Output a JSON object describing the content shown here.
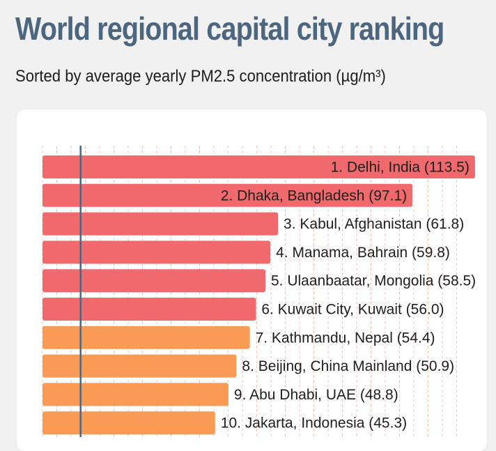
{
  "title": "World regional capital city ranking",
  "subtitle": "Sorted by average yearly PM2.5 concentration (µg/m³)",
  "colors": {
    "title": "#4d6680",
    "tier_high": "#f0696c",
    "tier_mid": "#f99b55",
    "reference_line": "#4d6680",
    "grid": "#f3c9c0"
  },
  "chart_data": {
    "type": "bar",
    "orientation": "horizontal",
    "title": "World regional capital city ranking",
    "subtitle": "Sorted by average yearly PM2.5 concentration (µg/m³)",
    "xlim": [
      0,
      120
    ],
    "reference_line": 10,
    "grid": true,
    "categories": [
      "Delhi, India",
      "Dhaka, Bangladesh",
      "Kabul, Afghanistan",
      "Manama, Bahrain",
      "Ulaanbaatar, Mongolia",
      "Kuwait City, Kuwait",
      "Kathmandu, Nepal",
      "Beijing, China Mainland",
      "Abu Dhabi, UAE",
      "Jakarta, Indonesia"
    ],
    "values": [
      113.5,
      97.1,
      61.8,
      59.8,
      58.5,
      56.0,
      54.4,
      50.9,
      48.8,
      45.3
    ],
    "labels": [
      "1. Delhi, India (113.5)",
      "2. Dhaka, Bangladesh (97.1)",
      "3. Kabul, Afghanistan (61.8)",
      "4. Manama, Bahrain (59.8)",
      "5. Ulaanbaatar, Mongolia (58.5)",
      "6. Kuwait City, Kuwait (56.0)",
      "7. Kathmandu, Nepal (54.4)",
      "8. Beijing, China Mainland (50.9)",
      "9. Abu Dhabi, UAE (48.8)",
      "10. Jakarta, Indonesia (45.3)"
    ],
    "tiers": [
      "high",
      "high",
      "high",
      "high",
      "high",
      "high",
      "mid",
      "mid",
      "mid",
      "mid"
    ]
  }
}
